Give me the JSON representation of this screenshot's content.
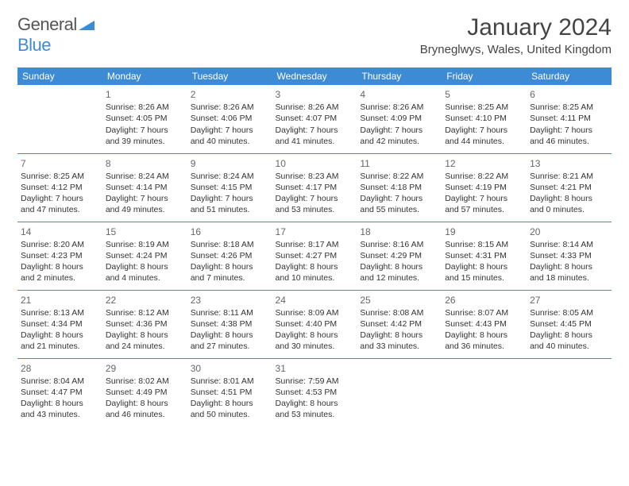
{
  "logo": {
    "word1": "General",
    "word2": "Blue"
  },
  "title": "January 2024",
  "location": "Bryneglwys, Wales, United Kingdom",
  "colors": {
    "header_bg": "#3d8bd4",
    "header_text": "#ffffff",
    "row_divider": "#3d8bd4",
    "body_text": "#333333",
    "title_text": "#444444",
    "logo_gray": "#555555",
    "logo_blue": "#3d8bd4",
    "background": "#ffffff"
  },
  "typography": {
    "title_fontsize": 30,
    "location_fontsize": 15,
    "header_fontsize": 12,
    "daynum_fontsize": 12,
    "cell_fontsize": 10.5,
    "font_family": "Arial"
  },
  "days_of_week": [
    "Sunday",
    "Monday",
    "Tuesday",
    "Wednesday",
    "Thursday",
    "Friday",
    "Saturday"
  ],
  "first_weekday_index": 1,
  "cells": [
    {
      "n": 1,
      "sr": "8:26 AM",
      "ss": "4:05 PM",
      "dl": "7 hours and 39 minutes."
    },
    {
      "n": 2,
      "sr": "8:26 AM",
      "ss": "4:06 PM",
      "dl": "7 hours and 40 minutes."
    },
    {
      "n": 3,
      "sr": "8:26 AM",
      "ss": "4:07 PM",
      "dl": "7 hours and 41 minutes."
    },
    {
      "n": 4,
      "sr": "8:26 AM",
      "ss": "4:09 PM",
      "dl": "7 hours and 42 minutes."
    },
    {
      "n": 5,
      "sr": "8:25 AM",
      "ss": "4:10 PM",
      "dl": "7 hours and 44 minutes."
    },
    {
      "n": 6,
      "sr": "8:25 AM",
      "ss": "4:11 PM",
      "dl": "7 hours and 46 minutes."
    },
    {
      "n": 7,
      "sr": "8:25 AM",
      "ss": "4:12 PM",
      "dl": "7 hours and 47 minutes."
    },
    {
      "n": 8,
      "sr": "8:24 AM",
      "ss": "4:14 PM",
      "dl": "7 hours and 49 minutes."
    },
    {
      "n": 9,
      "sr": "8:24 AM",
      "ss": "4:15 PM",
      "dl": "7 hours and 51 minutes."
    },
    {
      "n": 10,
      "sr": "8:23 AM",
      "ss": "4:17 PM",
      "dl": "7 hours and 53 minutes."
    },
    {
      "n": 11,
      "sr": "8:22 AM",
      "ss": "4:18 PM",
      "dl": "7 hours and 55 minutes."
    },
    {
      "n": 12,
      "sr": "8:22 AM",
      "ss": "4:19 PM",
      "dl": "7 hours and 57 minutes."
    },
    {
      "n": 13,
      "sr": "8:21 AM",
      "ss": "4:21 PM",
      "dl": "8 hours and 0 minutes."
    },
    {
      "n": 14,
      "sr": "8:20 AM",
      "ss": "4:23 PM",
      "dl": "8 hours and 2 minutes."
    },
    {
      "n": 15,
      "sr": "8:19 AM",
      "ss": "4:24 PM",
      "dl": "8 hours and 4 minutes."
    },
    {
      "n": 16,
      "sr": "8:18 AM",
      "ss": "4:26 PM",
      "dl": "8 hours and 7 minutes."
    },
    {
      "n": 17,
      "sr": "8:17 AM",
      "ss": "4:27 PM",
      "dl": "8 hours and 10 minutes."
    },
    {
      "n": 18,
      "sr": "8:16 AM",
      "ss": "4:29 PM",
      "dl": "8 hours and 12 minutes."
    },
    {
      "n": 19,
      "sr": "8:15 AM",
      "ss": "4:31 PM",
      "dl": "8 hours and 15 minutes."
    },
    {
      "n": 20,
      "sr": "8:14 AM",
      "ss": "4:33 PM",
      "dl": "8 hours and 18 minutes."
    },
    {
      "n": 21,
      "sr": "8:13 AM",
      "ss": "4:34 PM",
      "dl": "8 hours and 21 minutes."
    },
    {
      "n": 22,
      "sr": "8:12 AM",
      "ss": "4:36 PM",
      "dl": "8 hours and 24 minutes."
    },
    {
      "n": 23,
      "sr": "8:11 AM",
      "ss": "4:38 PM",
      "dl": "8 hours and 27 minutes."
    },
    {
      "n": 24,
      "sr": "8:09 AM",
      "ss": "4:40 PM",
      "dl": "8 hours and 30 minutes."
    },
    {
      "n": 25,
      "sr": "8:08 AM",
      "ss": "4:42 PM",
      "dl": "8 hours and 33 minutes."
    },
    {
      "n": 26,
      "sr": "8:07 AM",
      "ss": "4:43 PM",
      "dl": "8 hours and 36 minutes."
    },
    {
      "n": 27,
      "sr": "8:05 AM",
      "ss": "4:45 PM",
      "dl": "8 hours and 40 minutes."
    },
    {
      "n": 28,
      "sr": "8:04 AM",
      "ss": "4:47 PM",
      "dl": "8 hours and 43 minutes."
    },
    {
      "n": 29,
      "sr": "8:02 AM",
      "ss": "4:49 PM",
      "dl": "8 hours and 46 minutes."
    },
    {
      "n": 30,
      "sr": "8:01 AM",
      "ss": "4:51 PM",
      "dl": "8 hours and 50 minutes."
    },
    {
      "n": 31,
      "sr": "7:59 AM",
      "ss": "4:53 PM",
      "dl": "8 hours and 53 minutes."
    }
  ],
  "labels": {
    "sunrise": "Sunrise:",
    "sunset": "Sunset:",
    "daylight": "Daylight:"
  }
}
